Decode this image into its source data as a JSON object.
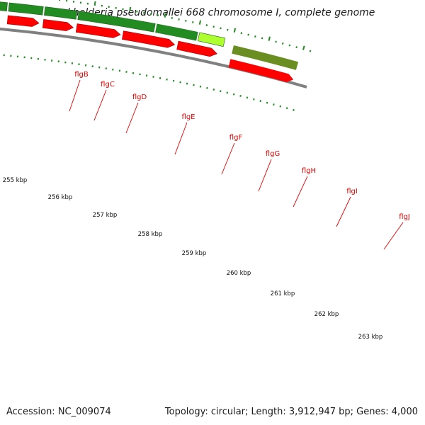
{
  "title": "Burkholderia pseudomallei 668 chromosome I, complete genome",
  "accession_text": "Accession: NC_009074",
  "summary_text": "Topology: circular; Length: 3,912,947 bp; Genes: 4,000",
  "genes": [
    {
      "name": "flgB"
    },
    {
      "name": "flgC"
    },
    {
      "name": "flgD"
    },
    {
      "name": "flgE"
    },
    {
      "name": "flgF"
    },
    {
      "name": "flgG"
    },
    {
      "name": "flgH"
    },
    {
      "name": "flgI"
    },
    {
      "name": "flgJ"
    }
  ],
  "scale_labels": [
    {
      "text": "255 kbp"
    },
    {
      "text": "256 kbp"
    },
    {
      "text": "257 kbp"
    },
    {
      "text": "258 kbp"
    },
    {
      "text": "259 kbp"
    },
    {
      "text": "260 kbp"
    },
    {
      "text": "261 kbp"
    },
    {
      "text": "262 kbp"
    },
    {
      "text": "263 kbp"
    }
  ],
  "colors": {
    "cds": "#ff0000",
    "gene": "#228b22",
    "gene_alt": "#adff2f",
    "gene_olive": "#6b8e23",
    "other": "#0000ff",
    "tan": "#c8b878",
    "backbone": "#808080",
    "ticks": "#228b22",
    "label": "#e00000"
  }
}
